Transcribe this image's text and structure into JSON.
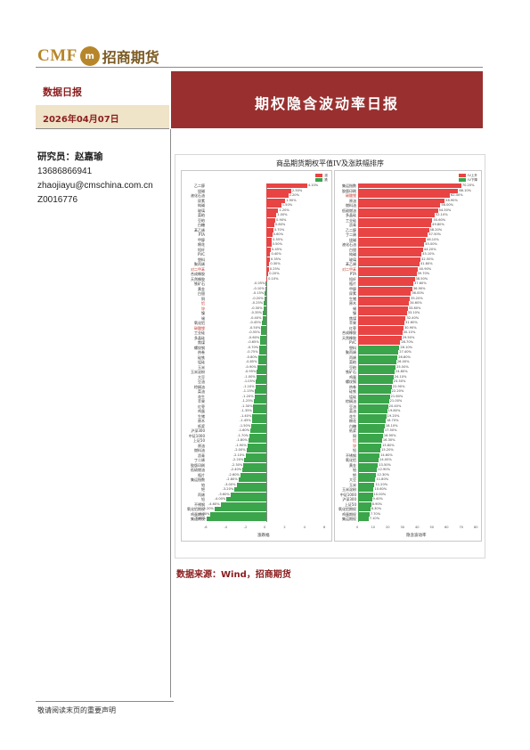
{
  "logo": {
    "brand": "CMF",
    "seal": "m",
    "cn": "招商期货"
  },
  "header": {
    "section": "数据日报",
    "date": "2026年04月07日",
    "title": "期权隐含波动率日报"
  },
  "researcher": {
    "label": "研究员：赵嘉瑜",
    "phone": "13686866941",
    "email": "zhaojiayu@cmschina.com.cn",
    "license": "Z0016776"
  },
  "chart_data": {
    "type": "bar",
    "title": "商品期货期权平值IV及涨跌幅排序",
    "left_panel": {
      "xlabel": "涨跌幅",
      "legend": [
        "涨",
        "跌"
      ],
      "xlim": [
        -6,
        6
      ],
      "xticks": [
        "-6",
        "-4",
        "-2",
        "0",
        "2",
        "4",
        "6"
      ],
      "categories": [
        "乙二醇",
        "烧碱",
        "液化石油",
        "尿素",
        "纯碱",
        "玻璃",
        "菜粕",
        "豆粕",
        "白糖",
        "苯乙烯",
        "PTA",
        "甲醇",
        "棉花",
        "短纤",
        "PVC",
        "塑料",
        "聚丙烯",
        "对二甲苯",
        "合成橡胶",
        "天然橡胶",
        "铁矿石",
        "黄金",
        "白银",
        "铜",
        "铝",
        "锌",
        "镍",
        "锡",
        "氧化铝",
        "碳酸锂",
        "工业硅",
        "多晶硅",
        "焦煤",
        "螺纹钢",
        "热卷",
        "硅铁",
        "锰硅",
        "玉米",
        "玉米淀粉",
        "大豆",
        "豆油",
        "棕榈油",
        "菜油",
        "花生",
        "苹果",
        "红枣",
        "鸡蛋",
        "生猪",
        "原木",
        "纸浆",
        "沪深300",
        "中证1000",
        "上证50",
        "原油",
        "燃料油",
        "沥青",
        "丁二烯",
        "胶版印刷",
        "低硫燃油",
        "瓶片",
        "集运指数",
        "铂",
        "钯",
        "丙烯",
        "铅",
        "不锈钢",
        "氧化铝期权",
        "鸡蛋期权",
        "集运期权"
      ],
      "values": [
        4.1,
        2.5,
        2.2,
        1.9,
        1.5,
        1.2,
        1.0,
        0.9,
        0.8,
        0.7,
        0.6,
        0.55,
        0.5,
        0.45,
        0.4,
        0.35,
        0.3,
        0.25,
        0.2,
        0.1,
        -0.05,
        -0.1,
        -0.15,
        -0.2,
        -0.25,
        -0.3,
        -0.35,
        -0.4,
        -0.45,
        -0.5,
        -0.55,
        -0.6,
        -0.65,
        -0.7,
        -0.75,
        -0.8,
        -0.85,
        -0.9,
        -0.95,
        -1.0,
        -1.05,
        -1.1,
        -1.15,
        -1.2,
        -1.25,
        -1.3,
        -1.35,
        -1.4,
        -1.45,
        -1.5,
        -1.6,
        -1.7,
        -1.8,
        -1.9,
        -2.0,
        -2.1,
        -2.2,
        -2.3,
        -2.4,
        -2.6,
        -2.8,
        -3.0,
        -3.2,
        -3.6,
        -4.0,
        -4.6,
        -5.2,
        -5.6,
        -6.0
      ],
      "highlight": [
        "对二甲苯",
        "碳酸锂",
        "铝",
        "锌"
      ]
    },
    "right_panel": {
      "xlabel": "隐含波动率",
      "legend": [
        "IV上升",
        "IV下降"
      ],
      "xlim": [
        0,
        80
      ],
      "xticks": [
        "0",
        "10",
        "20",
        "30",
        "40",
        "50",
        "60",
        "70",
        "80"
      ],
      "categories": [
        "集运指数",
        "胶版印刷",
        "碳酸锂",
        "原油",
        "燃料油",
        "低硫燃油",
        "多晶硅",
        "工业硅",
        "沥青",
        "乙二醇",
        "丁二烯",
        "烧碱",
        "液化石油",
        "白银",
        "纯碱",
        "玻璃",
        "苯乙烯",
        "对二甲苯",
        "PTA",
        "短纤",
        "瓶片",
        "甲醇",
        "尿素",
        "生猪",
        "原木",
        "锡",
        "镍",
        "焦煤",
        "苹果",
        "红枣",
        "合成橡胶",
        "天然橡胶",
        "PVC",
        "塑料",
        "聚丙烯",
        "丙烯",
        "菜粕",
        "豆粕",
        "铁矿石",
        "鸡蛋",
        "螺纹钢",
        "热卷",
        "硅铁",
        "锰硅",
        "棕榈油",
        "豆油",
        "菜油",
        "花生",
        "棉花",
        "白糖",
        "纸浆",
        "铜",
        "铝",
        "锌",
        "铅",
        "不锈钢",
        "氧化铝",
        "黄金",
        "铂",
        "钯",
        "大豆",
        "玉米",
        "玉米淀粉",
        "中证1000",
        "沪深300",
        "上证50",
        "氧化铝期权",
        "鸡蛋期权",
        "集运期权"
      ],
      "values": [
        70.2,
        68.1,
        62.4,
        58.9,
        56.0,
        54.3,
        52.1,
        50.6,
        49.8,
        48.2,
        47.5,
        46.1,
        45.0,
        44.2,
        43.1,
        42.5,
        41.8,
        40.9,
        39.7,
        38.5,
        37.6,
        36.9,
        36.0,
        35.2,
        34.6,
        33.8,
        33.1,
        32.4,
        31.6,
        30.9,
        30.1,
        29.5,
        28.7,
        28.1,
        27.4,
        26.8,
        26.0,
        25.5,
        24.8,
        24.1,
        23.5,
        22.9,
        22.2,
        21.6,
        21.0,
        20.4,
        19.8,
        19.2,
        18.7,
        18.1,
        17.5,
        16.9,
        16.3,
        15.8,
        15.2,
        14.6,
        14.0,
        13.5,
        12.9,
        12.3,
        11.8,
        11.2,
        10.6,
        10.0,
        9.4,
        8.9,
        8.3,
        7.7,
        7.1
      ],
      "up_count": 33,
      "highlight": [
        "对二甲苯",
        "碳酸锂",
        "铝",
        "锌"
      ]
    }
  },
  "source": "数据来源：Wind，招商期货",
  "footer": "敬请阅读末页的重要声明",
  "colors": {
    "banner": "#99302f",
    "accent_text": "#8b1c1c",
    "date_bg": "#efe3c8",
    "up": "#e84444",
    "down": "#3aa54a"
  }
}
